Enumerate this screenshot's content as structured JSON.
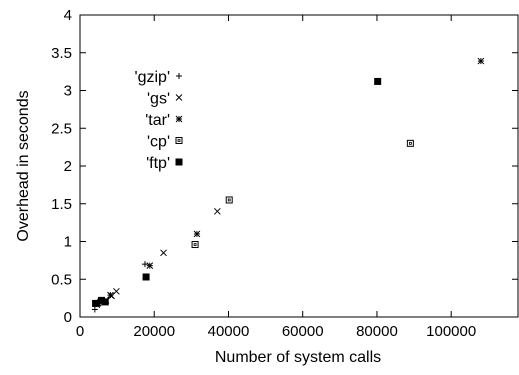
{
  "chart_data": {
    "type": "scatter",
    "title": "",
    "xlabel": "Number of system calls",
    "ylabel": "Overhead in seconds",
    "xlim": [
      0,
      118000
    ],
    "ylim": [
      0,
      4
    ],
    "xticks": [
      0,
      20000,
      40000,
      60000,
      80000,
      100000
    ],
    "yticks": [
      0,
      0.5,
      1,
      1.5,
      2,
      2.5,
      3,
      3.5,
      4
    ],
    "xtick_labels": [
      "0",
      "20000",
      "40000",
      "60000",
      "80000",
      "100000"
    ],
    "ytick_labels": [
      "0",
      "0.5",
      "1",
      "1.5",
      "2",
      "2.5",
      "3",
      "3.5",
      "4"
    ],
    "grid": false,
    "legend_position": "top-left",
    "series": [
      {
        "name": "'gzip'",
        "marker": "plus",
        "points": [
          [
            4000,
            0.1
          ],
          [
            5200,
            0.16
          ],
          [
            17500,
            0.7
          ]
        ]
      },
      {
        "name": "'gs'",
        "marker": "cross",
        "points": [
          [
            5500,
            0.2
          ],
          [
            7000,
            0.22
          ],
          [
            8500,
            0.28
          ],
          [
            9800,
            0.34
          ],
          [
            22500,
            0.85
          ],
          [
            37000,
            1.4
          ]
        ]
      },
      {
        "name": "'tar'",
        "marker": "asterisk",
        "points": [
          [
            4800,
            0.18
          ],
          [
            8200,
            0.29
          ],
          [
            18800,
            0.68
          ],
          [
            31500,
            1.1
          ],
          [
            108000,
            3.39
          ]
        ]
      },
      {
        "name": "'cp'",
        "marker": "open-square",
        "points": [
          [
            31000,
            0.96
          ],
          [
            40200,
            1.55
          ],
          [
            89000,
            2.3
          ]
        ]
      },
      {
        "name": "'ftp'",
        "marker": "filled-square",
        "points": [
          [
            4200,
            0.18
          ],
          [
            5800,
            0.22
          ],
          [
            6800,
            0.2
          ],
          [
            17800,
            0.53
          ],
          [
            80200,
            3.12
          ]
        ]
      }
    ]
  }
}
